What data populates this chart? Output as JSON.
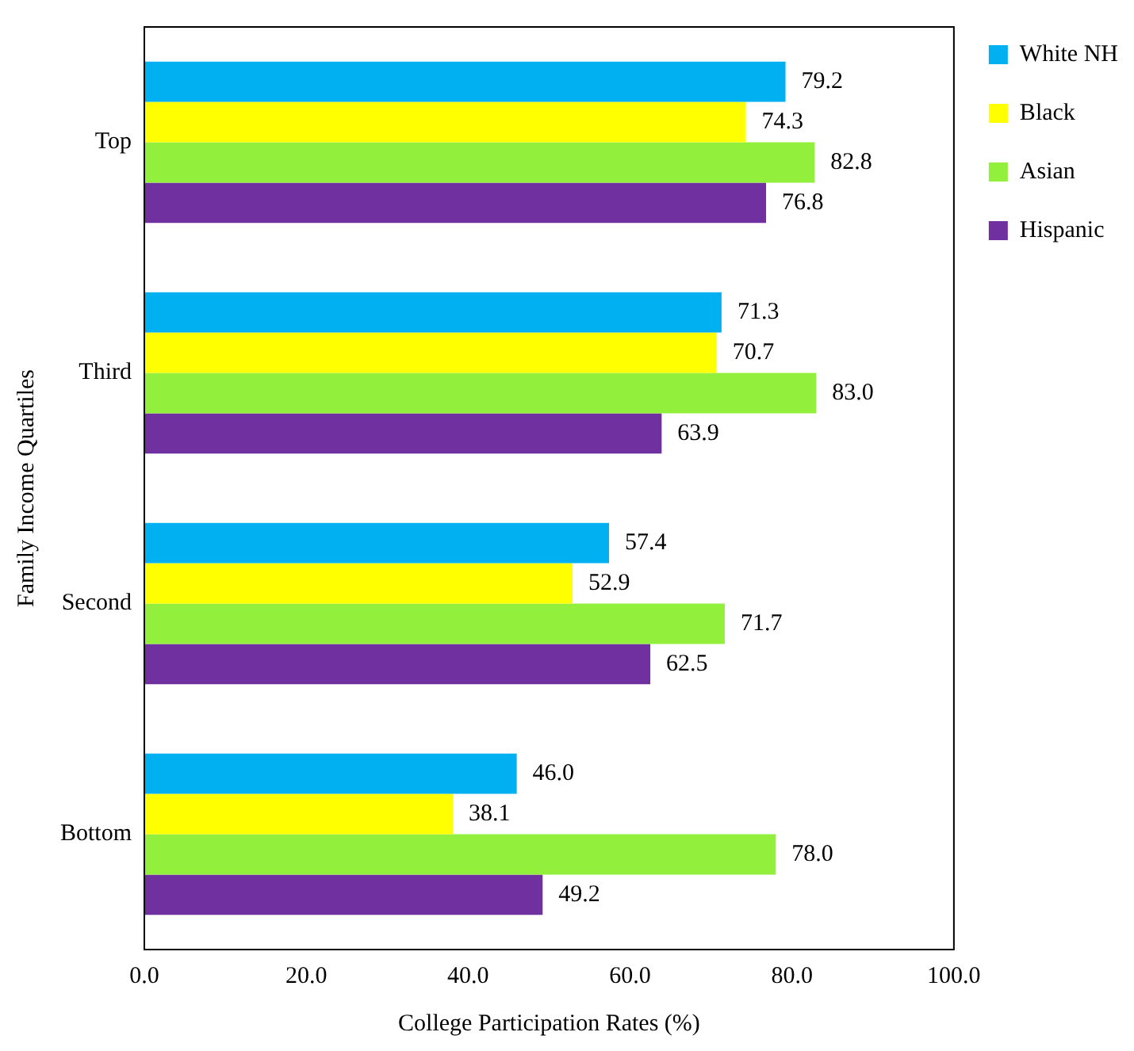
{
  "chart_data": {
    "type": "bar",
    "orientation": "horizontal",
    "xlabel": "College Participation Rates (%)",
    "ylabel": "Family Income Quartiles",
    "categories": [
      "Top",
      "Third",
      "Second",
      "Bottom"
    ],
    "series": [
      {
        "name": "White NH",
        "color": "#00b0f0",
        "values": [
          79.2,
          71.3,
          57.4,
          46.0
        ],
        "value_labels": [
          "79.2",
          "71.3",
          "57.4",
          "46.0"
        ]
      },
      {
        "name": "Black",
        "color": "#ffff00",
        "values": [
          74.3,
          70.7,
          52.9,
          38.1
        ],
        "value_labels": [
          "74.3",
          "70.7",
          "52.9",
          "38.1"
        ]
      },
      {
        "name": "Asian",
        "color": "#92f03c",
        "values": [
          82.8,
          83.0,
          71.7,
          78.0
        ],
        "value_labels": [
          "82.8",
          "83.0",
          "71.7",
          "78.0"
        ]
      },
      {
        "name": "Hispanic",
        "color": "#7030a0",
        "values": [
          76.8,
          63.9,
          62.5,
          49.2
        ],
        "value_labels": [
          "76.8",
          "63.9",
          "62.5",
          "49.2"
        ]
      }
    ],
    "xlim": [
      0,
      100
    ],
    "xticks": [
      {
        "value": 0,
        "label": "0.0"
      },
      {
        "value": 20,
        "label": "20.0"
      },
      {
        "value": 40,
        "label": "40.0"
      },
      {
        "value": 60,
        "label": "60.0"
      },
      {
        "value": 80,
        "label": "80.0"
      },
      {
        "value": 100,
        "label": "100.0"
      }
    ],
    "grid": false,
    "legend": "top right"
  }
}
